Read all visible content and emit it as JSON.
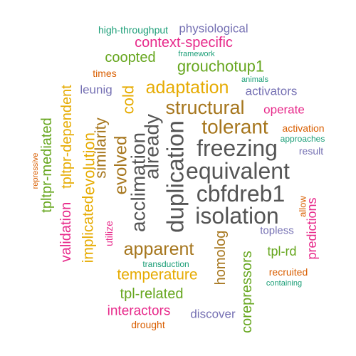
{
  "words": [
    {
      "text": "high-throughput",
      "color": "#1b9e77"
    },
    {
      "text": "physiological",
      "color": "#7570b3"
    },
    {
      "text": "context-specific",
      "color": "#e7298a"
    },
    {
      "text": "framework",
      "color": "#1b9e77"
    },
    {
      "text": "coopted",
      "color": "#66a61e"
    },
    {
      "text": "grouchotup1",
      "color": "#66a61e"
    },
    {
      "text": "times",
      "color": "#d95f02"
    },
    {
      "text": "animals",
      "color": "#1b9e77"
    },
    {
      "text": "leunig",
      "color": "#7570b3"
    },
    {
      "text": "adaptation",
      "color": "#e6ab02"
    },
    {
      "text": "activators",
      "color": "#7570b3"
    },
    {
      "text": "cold",
      "color": "#e6ab02"
    },
    {
      "text": "structural",
      "color": "#a6761d"
    },
    {
      "text": "operate",
      "color": "#e7298a"
    },
    {
      "text": "tolerant",
      "color": "#a6761d"
    },
    {
      "text": "activation",
      "color": "#d95f02"
    },
    {
      "text": "approaches",
      "color": "#1b9e77"
    },
    {
      "text": "result",
      "color": "#7570b3"
    },
    {
      "text": "freezing",
      "color": "#555555"
    },
    {
      "text": "equivalent",
      "color": "#555555"
    },
    {
      "text": "cbfdreb1",
      "color": "#555555"
    },
    {
      "text": "isolation",
      "color": "#555555"
    },
    {
      "text": "topless",
      "color": "#7570b3"
    },
    {
      "text": "tpl-rd",
      "color": "#66a61e"
    },
    {
      "text": "recruited",
      "color": "#d95f02"
    },
    {
      "text": "containing",
      "color": "#1b9e77"
    },
    {
      "text": "apparent",
      "color": "#a6761d"
    },
    {
      "text": "transduction",
      "color": "#1b9e77"
    },
    {
      "text": "temperature",
      "color": "#e6ab02"
    },
    {
      "text": "tpl-related",
      "color": "#66a61e"
    },
    {
      "text": "interactors",
      "color": "#e7298a"
    },
    {
      "text": "discover",
      "color": "#7570b3"
    },
    {
      "text": "drought",
      "color": "#d95f02"
    },
    {
      "text": "repressive",
      "color": "#d95f02"
    },
    {
      "text": "tpltpr-mediated",
      "color": "#66a61e"
    },
    {
      "text": "tpltpr-dependent",
      "color": "#e6ab02"
    },
    {
      "text": "validation",
      "color": "#e7298a"
    },
    {
      "text": "implicated",
      "color": "#e6ab02"
    },
    {
      "text": "evolution",
      "color": "#e6ab02"
    },
    {
      "text": "similarity",
      "color": "#a6761d"
    },
    {
      "text": "evolved",
      "color": "#a6761d"
    },
    {
      "text": "acclimation",
      "color": "#555555"
    },
    {
      "text": "already",
      "color": "#555555"
    },
    {
      "text": "duplication",
      "color": "#555555"
    },
    {
      "text": "utilize",
      "color": "#e7298a"
    },
    {
      "text": "homolog",
      "color": "#a6761d"
    },
    {
      "text": "corepressors",
      "color": "#66a61e"
    },
    {
      "text": "allow",
      "color": "#d95f02"
    },
    {
      "text": "predictions",
      "color": "#e7298a"
    }
  ]
}
